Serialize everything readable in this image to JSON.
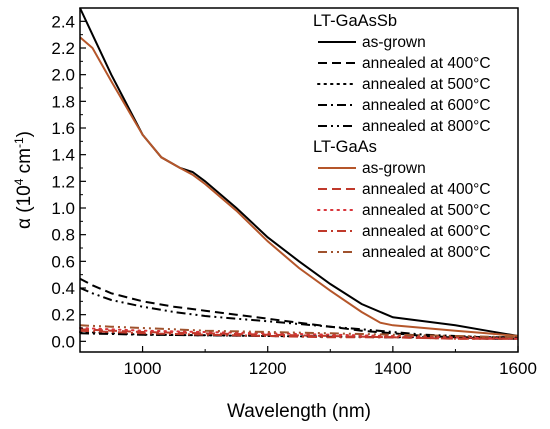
{
  "chart_data": {
    "type": "line",
    "title": "",
    "xlabel": "Wavelength (nm)",
    "ylabel": {
      "prefix": "α (10",
      "sup1": "4",
      "mid": " cm",
      "sup2": "-1",
      "suffix": ")"
    },
    "xlim": [
      900,
      1600
    ],
    "ylim": [
      -0.08,
      2.5
    ],
    "xticks": [
      1000,
      1200,
      1400,
      1600
    ],
    "yticks": [
      0.0,
      0.2,
      0.4,
      0.6,
      0.8,
      1.0,
      1.2,
      1.4,
      1.6,
      1.8,
      2.0,
      2.2,
      2.4
    ],
    "xtick_labels": [
      "1000",
      "1200",
      "1400",
      "1600"
    ],
    "ytick_labels": [
      "0.0",
      "0.2",
      "0.4",
      "0.6",
      "0.8",
      "1.0",
      "1.2",
      "1.4",
      "1.6",
      "1.8",
      "2.0",
      "2.2",
      "2.4"
    ],
    "grid": false,
    "legend": "top-right",
    "legend_groups": [
      {
        "title": "LT-GaAsSb",
        "series": [
          {
            "name": "as-grown",
            "color": "#000000",
            "dash": "solid",
            "x": [
              900,
              920,
              950,
              1000,
              1030,
              1060,
              1080,
              1100,
              1150,
              1200,
              1250,
              1300,
              1350,
              1400,
              1450,
              1500,
              1550,
              1600
            ],
            "y": [
              2.5,
              2.3,
              2.0,
              1.55,
              1.38,
              1.3,
              1.27,
              1.2,
              1.0,
              0.78,
              0.6,
              0.43,
              0.28,
              0.18,
              0.15,
              0.12,
              0.08,
              0.04
            ]
          },
          {
            "name": "annealed at 400°C",
            "color": "#000000",
            "dash": "dashed",
            "x": [
              900,
              920,
              950,
              1000,
              1050,
              1100,
              1150,
              1200,
              1250,
              1300,
              1350,
              1400,
              1450,
              1500,
              1550,
              1600
            ],
            "y": [
              0.47,
              0.42,
              0.36,
              0.3,
              0.26,
              0.23,
              0.2,
              0.17,
              0.14,
              0.11,
              0.08,
              0.06,
              0.04,
              0.03,
              0.02,
              0.02
            ]
          },
          {
            "name": "annealed at 500°C",
            "color": "#000000",
            "dash": "dotted",
            "x": [
              900,
              950,
              1000,
              1100,
              1200,
              1300,
              1400,
              1500,
              1600
            ],
            "y": [
              0.07,
              0.06,
              0.05,
              0.045,
              0.04,
              0.035,
              0.03,
              0.03,
              0.03
            ]
          },
          {
            "name": "annealed at 600°C",
            "color": "#000000",
            "dash": "dashdot",
            "x": [
              900,
              950,
              1000,
              1100,
              1200,
              1300,
              1400,
              1500,
              1600
            ],
            "y": [
              0.06,
              0.055,
              0.05,
              0.045,
              0.04,
              0.035,
              0.03,
              0.03,
              0.03
            ]
          },
          {
            "name": "annealed at 800°C",
            "color": "#000000",
            "dash": "dashdotdot",
            "x": [
              900,
              920,
              950,
              1000,
              1050,
              1100,
              1150,
              1200,
              1250,
              1300,
              1350,
              1400,
              1450,
              1500,
              1550,
              1600
            ],
            "y": [
              0.4,
              0.36,
              0.31,
              0.26,
              0.22,
              0.19,
              0.17,
              0.15,
              0.13,
              0.11,
              0.09,
              0.07,
              0.05,
              0.04,
              0.03,
              0.02
            ]
          }
        ]
      },
      {
        "title": "LT-GaAs",
        "series": [
          {
            "name": "as-grown",
            "color": "#b5562a",
            "dash": "solid",
            "x": [
              900,
              920,
              950,
              1000,
              1030,
              1060,
              1080,
              1100,
              1150,
              1200,
              1250,
              1300,
              1350,
              1380,
              1400,
              1450,
              1500,
              1550,
              1600
            ],
            "y": [
              2.28,
              2.2,
              1.95,
              1.55,
              1.38,
              1.3,
              1.25,
              1.18,
              0.98,
              0.75,
              0.55,
              0.38,
              0.22,
              0.14,
              0.12,
              0.1,
              0.08,
              0.06,
              0.04
            ]
          },
          {
            "name": "annealed at 400°C",
            "color": "#c0392b",
            "dash": "dashed",
            "x": [
              900,
              950,
              1000,
              1100,
              1200,
              1300,
              1400,
              1500,
              1600
            ],
            "y": [
              0.09,
              0.08,
              0.07,
              0.06,
              0.05,
              0.04,
              0.03,
              0.02,
              0.02
            ]
          },
          {
            "name": "annealed at 500°C",
            "color": "#d9343a",
            "dash": "dotted",
            "x": [
              900,
              950,
              1000,
              1100,
              1200,
              1300,
              1400,
              1500,
              1600
            ],
            "y": [
              0.1,
              0.09,
              0.08,
              0.07,
              0.06,
              0.05,
              0.04,
              0.03,
              0.02
            ]
          },
          {
            "name": "annealed at 600°C",
            "color": "#c0392b",
            "dash": "dashdot",
            "x": [
              900,
              950,
              1000,
              1100,
              1200,
              1300,
              1400,
              1500,
              1600
            ],
            "y": [
              0.08,
              0.07,
              0.06,
              0.05,
              0.04,
              0.03,
              0.03,
              0.02,
              0.02
            ]
          },
          {
            "name": "annealed at 800°C",
            "color": "#a0522d",
            "dash": "dashdotdot",
            "x": [
              900,
              950,
              1000,
              1050,
              1100,
              1200,
              1300,
              1400,
              1500,
              1600
            ],
            "y": [
              0.12,
              0.11,
              0.1,
              0.09,
              0.08,
              0.07,
              0.06,
              0.05,
              0.04,
              0.03
            ]
          }
        ]
      }
    ]
  }
}
